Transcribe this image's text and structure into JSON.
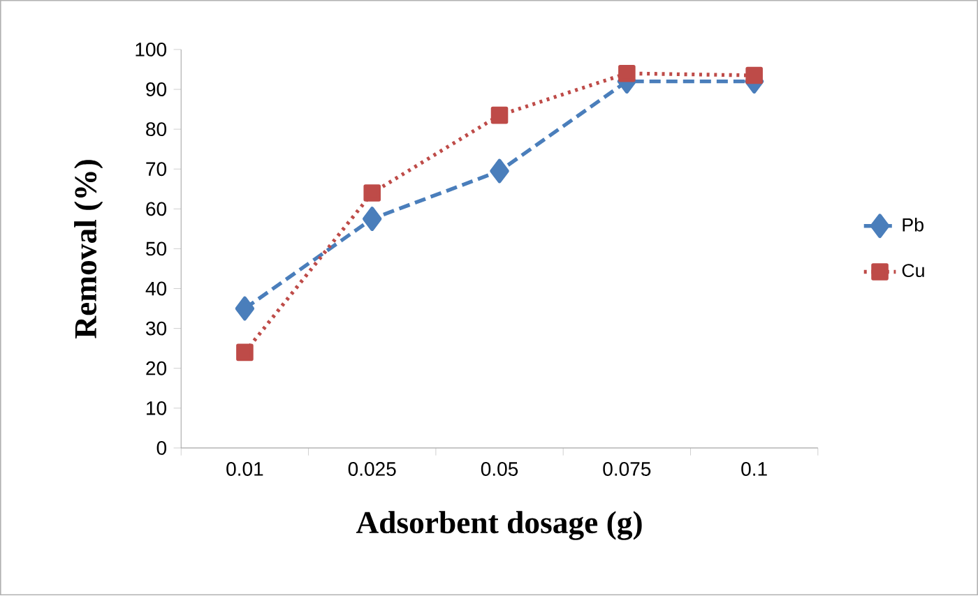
{
  "chart_data": {
    "type": "line",
    "xlabel": "Adsorbent dosage (g)",
    "ylabel": "Removal (%)",
    "categories": [
      "0.01",
      "0.025",
      "0.05",
      "0.075",
      "0.1"
    ],
    "series": [
      {
        "name": "Pb",
        "color": "#4a7ebb",
        "values": [
          35,
          57.5,
          69.5,
          92,
          92
        ],
        "marker": "diamond",
        "line_style": "dashed"
      },
      {
        "name": "Cu",
        "color": "#be4b48",
        "values": [
          24,
          64,
          83.5,
          94,
          93.5
        ],
        "marker": "square",
        "line_style": "dotted"
      }
    ],
    "ylim": [
      0,
      100
    ],
    "yticks": [
      0,
      10,
      20,
      30,
      40,
      50,
      60,
      70,
      80,
      90,
      100
    ],
    "grid": false,
    "legend": "right"
  }
}
